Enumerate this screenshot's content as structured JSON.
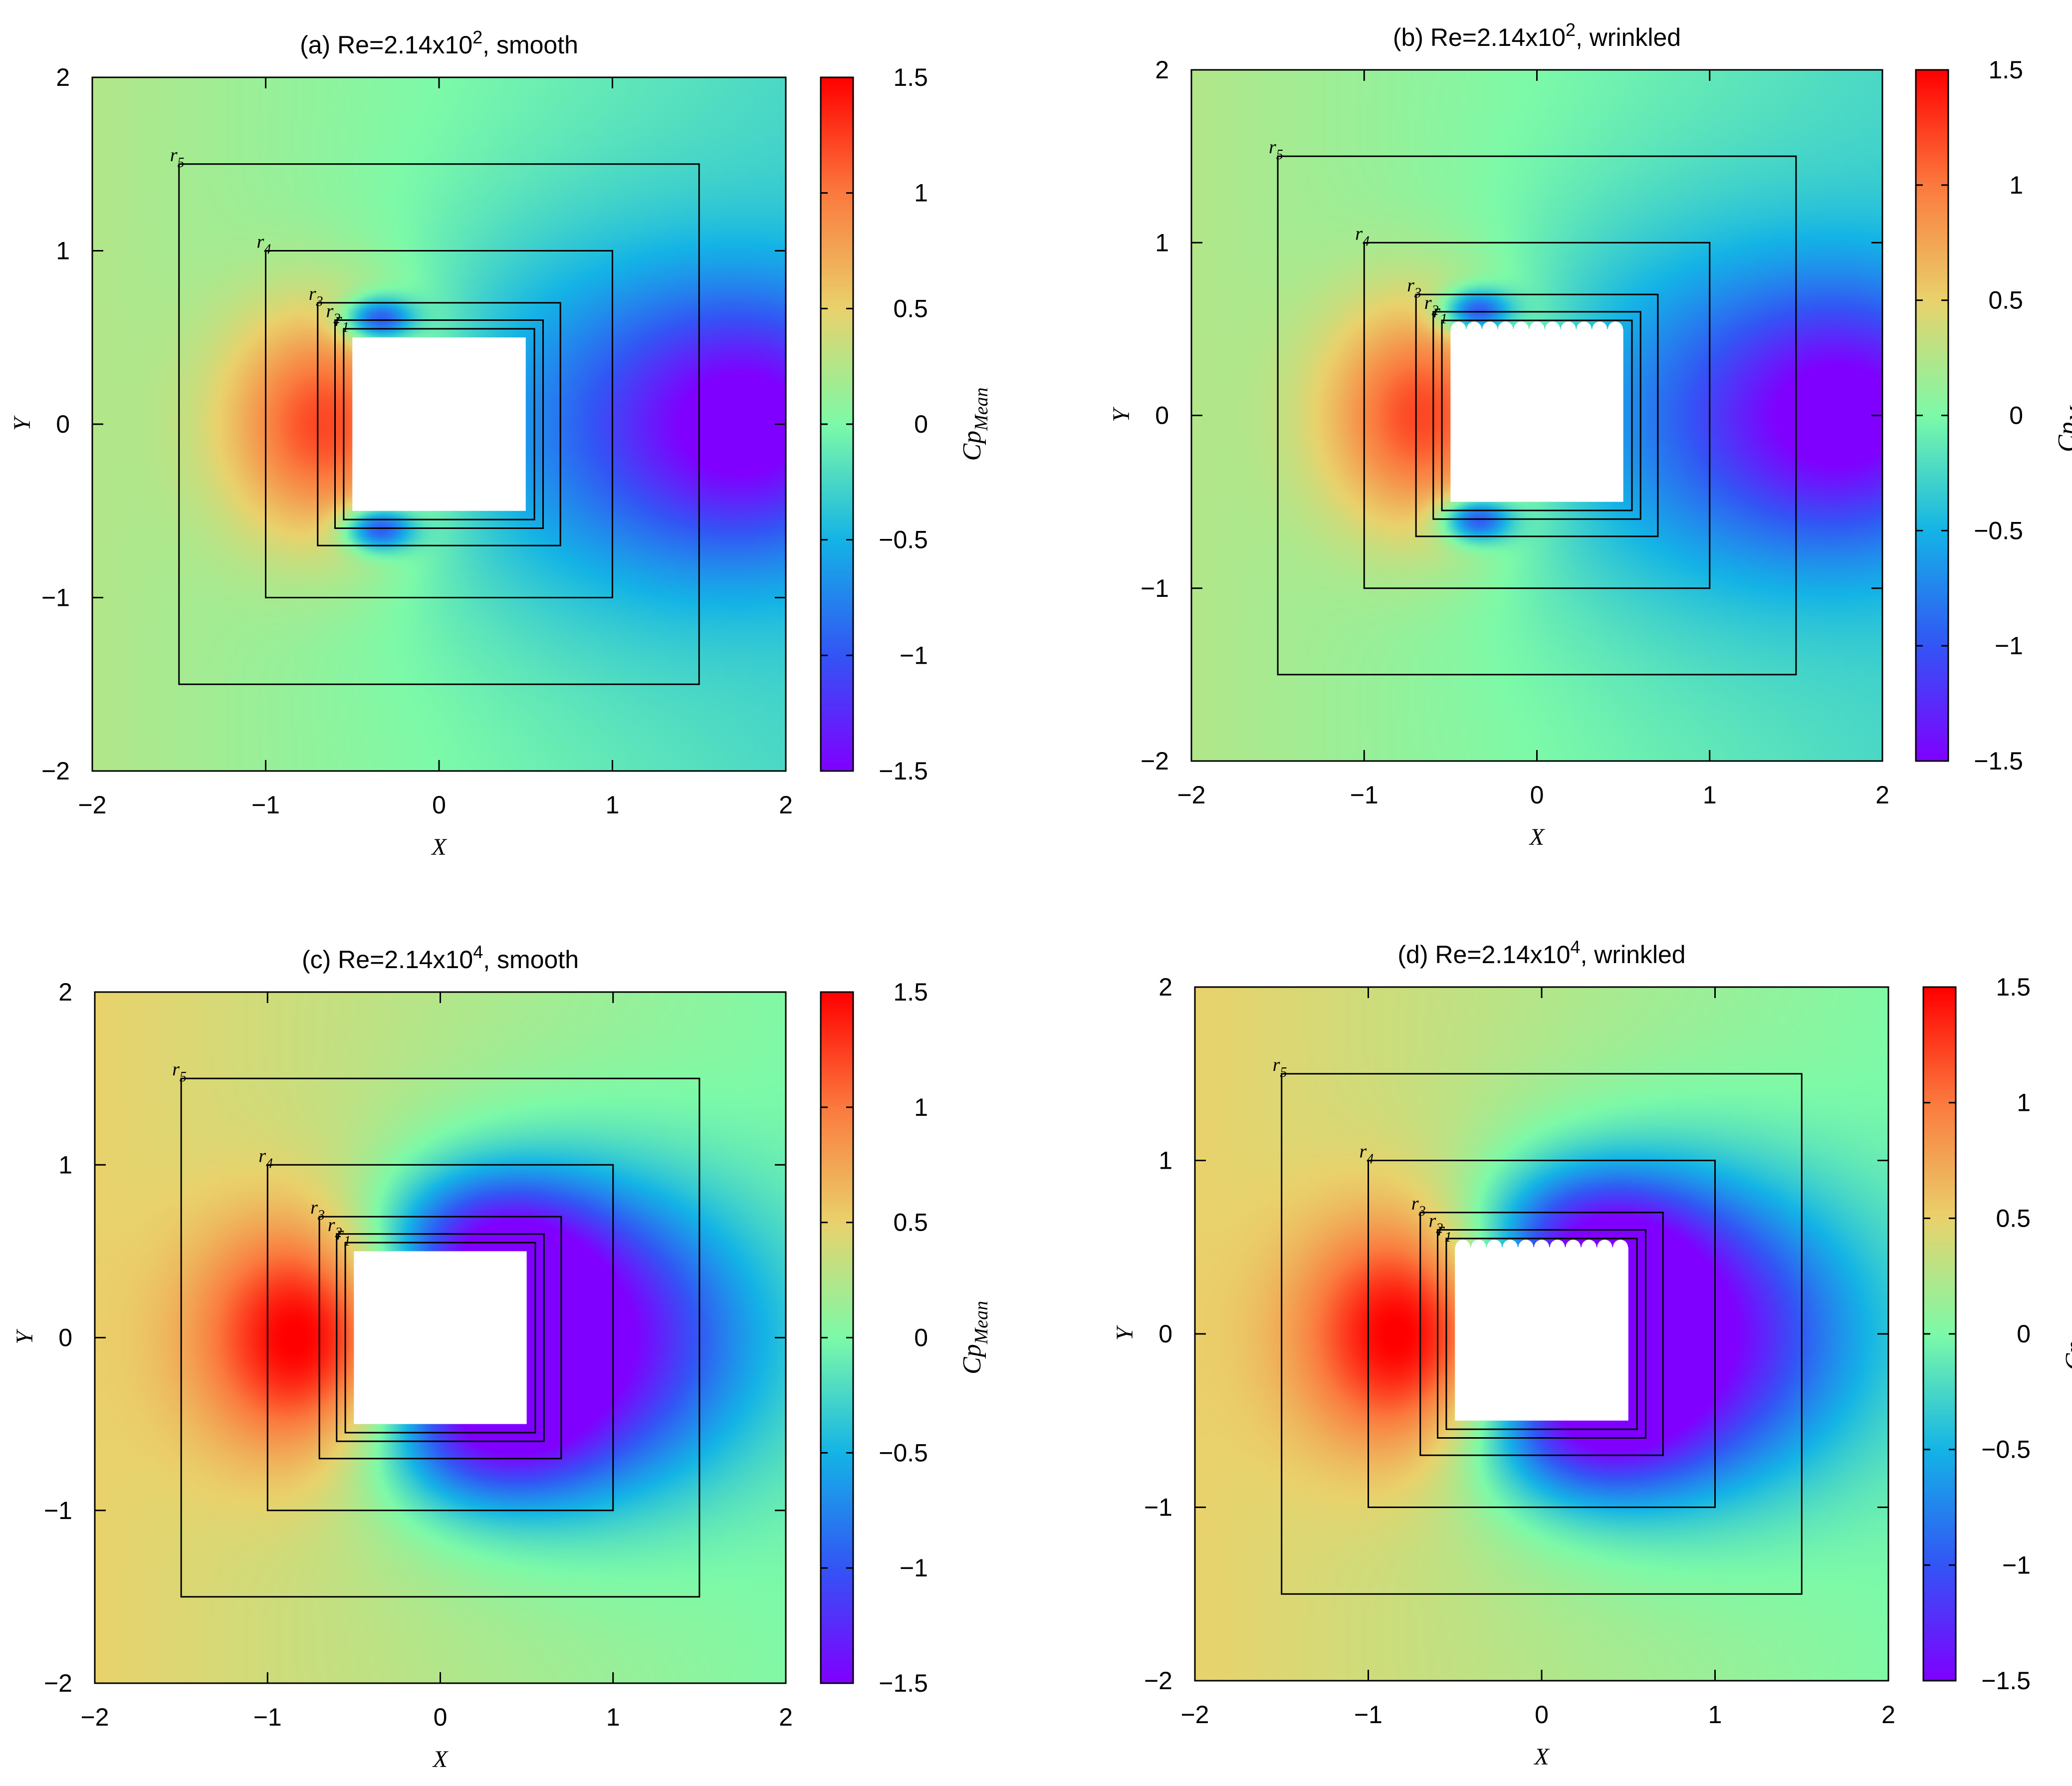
{
  "figure": {
    "description_free": true,
    "colormap": {
      "stops": [
        {
          "v": -1.5,
          "color": "#8000ff"
        },
        {
          "v": -1.0,
          "color": "#3355f5"
        },
        {
          "v": -0.5,
          "color": "#14b4e6"
        },
        {
          "v": 0.0,
          "color": "#7dfaa8"
        },
        {
          "v": 0.5,
          "color": "#e9d26c"
        },
        {
          "v": 1.0,
          "color": "#fb7a3e"
        },
        {
          "v": 1.5,
          "color": "#ff0000"
        }
      ]
    }
  },
  "chart_data": [
    {
      "type": "heatmap",
      "panel": "a",
      "title_prefix": "(a) Re=2.14x10",
      "title_exp": "2",
      "title_suffix": ", smooth",
      "xlabel": "X",
      "ylabel": "Y",
      "xlim": [
        -2,
        2
      ],
      "ylim": [
        -2,
        2
      ],
      "xticks": [
        "−2",
        "−1",
        "0",
        "1",
        "2"
      ],
      "yticks": [
        "−2",
        "−1",
        "0",
        "1",
        "2"
      ],
      "colorbar": {
        "label_main": "Cp",
        "label_sub": "Mean",
        "range": [
          -1.5,
          1.5
        ],
        "ticks": [
          "−1.5",
          "−1",
          "−0.5",
          "0",
          "0.5",
          "1",
          "1.5"
        ]
      },
      "field_regime": "low",
      "wrinkled": false,
      "body": {
        "half_width": 0.5
      },
      "regions": [
        {
          "label": "r",
          "index": "1",
          "half_width": 0.55
        },
        {
          "label": "r",
          "index": "2",
          "half_width": 0.6
        },
        {
          "label": "r",
          "index": "3",
          "half_width": 0.7
        },
        {
          "label": "r",
          "index": "4",
          "half_width": 1.0
        },
        {
          "label": "r",
          "index": "5",
          "half_width": 1.5
        }
      ]
    },
    {
      "type": "heatmap",
      "panel": "b",
      "title_prefix": "(b) Re=2.14x10",
      "title_exp": "2",
      "title_suffix": ", wrinkled",
      "xlabel": "X",
      "ylabel": "Y",
      "xlim": [
        -2,
        2
      ],
      "ylim": [
        -2,
        2
      ],
      "xticks": [
        "−2",
        "−1",
        "0",
        "1",
        "2"
      ],
      "yticks": [
        "−2",
        "−1",
        "0",
        "1",
        "2"
      ],
      "colorbar": {
        "label_main": "Cp",
        "label_sub": "Mean",
        "range": [
          -1.5,
          1.5
        ],
        "ticks": [
          "−1.5",
          "−1",
          "−0.5",
          "0",
          "0.5",
          "1",
          "1.5"
        ]
      },
      "field_regime": "low",
      "wrinkled": true,
      "body": {
        "half_width": 0.5
      },
      "regions": [
        {
          "label": "r",
          "index": "1",
          "half_width": 0.55
        },
        {
          "label": "r",
          "index": "2",
          "half_width": 0.6
        },
        {
          "label": "r",
          "index": "3",
          "half_width": 0.7
        },
        {
          "label": "r",
          "index": "4",
          "half_width": 1.0
        },
        {
          "label": "r",
          "index": "5",
          "half_width": 1.5
        }
      ]
    },
    {
      "type": "heatmap",
      "panel": "c",
      "title_prefix": "(c) Re=2.14x10",
      "title_exp": "4",
      "title_suffix": ", smooth",
      "xlabel": "X",
      "ylabel": "Y",
      "xlim": [
        -2,
        2
      ],
      "ylim": [
        -2,
        2
      ],
      "xticks": [
        "−2",
        "−1",
        "0",
        "1",
        "2"
      ],
      "yticks": [
        "−2",
        "−1",
        "0",
        "1",
        "2"
      ],
      "colorbar": {
        "label_main": "Cp",
        "label_sub": "Mean",
        "range": [
          -1.5,
          1.5
        ],
        "ticks": [
          "−1.5",
          "−1",
          "−0.5",
          "0",
          "0.5",
          "1",
          "1.5"
        ]
      },
      "field_regime": "high",
      "wrinkled": false,
      "body": {
        "half_width": 0.5
      },
      "regions": [
        {
          "label": "r",
          "index": "1",
          "half_width": 0.55
        },
        {
          "label": "r",
          "index": "2",
          "half_width": 0.6
        },
        {
          "label": "r",
          "index": "3",
          "half_width": 0.7
        },
        {
          "label": "r",
          "index": "4",
          "half_width": 1.0
        },
        {
          "label": "r",
          "index": "5",
          "half_width": 1.5
        }
      ]
    },
    {
      "type": "heatmap",
      "panel": "d",
      "title_prefix": "(d) Re=2.14x10",
      "title_exp": "4",
      "title_suffix": ", wrinkled",
      "xlabel": "X",
      "ylabel": "Y",
      "xlim": [
        -2,
        2
      ],
      "ylim": [
        -2,
        2
      ],
      "xticks": [
        "−2",
        "−1",
        "0",
        "1",
        "2"
      ],
      "yticks": [
        "−2",
        "−1",
        "0",
        "1",
        "2"
      ],
      "colorbar": {
        "label_main": "Cp",
        "label_sub": "Mean",
        "range": [
          -1.5,
          1.5
        ],
        "ticks": [
          "−1.5",
          "−1",
          "−0.5",
          "0",
          "0.5",
          "1",
          "1.5"
        ]
      },
      "field_regime": "high",
      "wrinkled": true,
      "body": {
        "half_width": 0.5
      },
      "regions": [
        {
          "label": "r",
          "index": "1",
          "half_width": 0.55
        },
        {
          "label": "r",
          "index": "2",
          "half_width": 0.6
        },
        {
          "label": "r",
          "index": "3",
          "half_width": 0.7
        },
        {
          "label": "r",
          "index": "4",
          "half_width": 1.0
        },
        {
          "label": "r",
          "index": "5",
          "half_width": 1.5
        }
      ]
    }
  ]
}
